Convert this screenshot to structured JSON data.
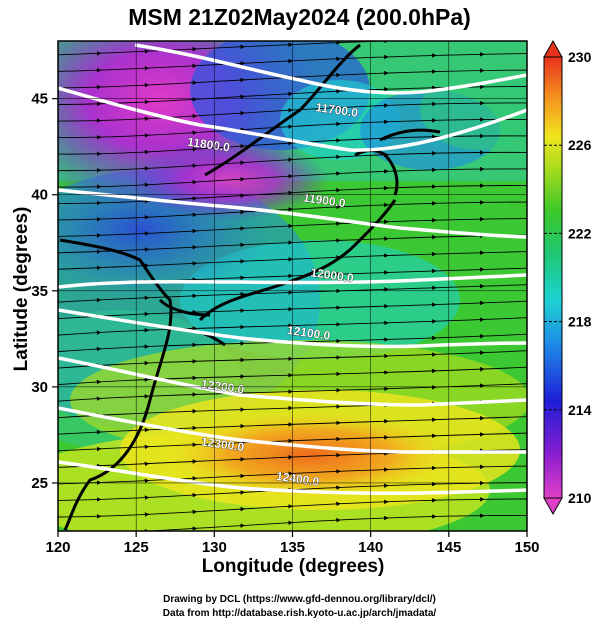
{
  "title": "MSM 21Z02May2024 (200.0hPa)",
  "map_axes": {
    "xlabel": "Longitude (degrees)",
    "ylabel": "Latitude  (degrees)",
    "xlim": [
      120,
      150
    ],
    "ylim": [
      22.5,
      48
    ],
    "x_ticks": [
      "120",
      "125",
      "130",
      "135",
      "140",
      "145",
      "150"
    ],
    "y_ticks": [
      "25",
      "30",
      "35",
      "40",
      "45"
    ]
  },
  "colorbar": {
    "range": [
      210,
      230
    ],
    "tick_labels": [
      "230",
      "226",
      "222",
      "218",
      "214",
      "210"
    ]
  },
  "contour_labels": [
    {
      "text": "11700.0",
      "lon": 137.8,
      "lat": 44.2
    },
    {
      "text": "11800.0",
      "lon": 129.6,
      "lat": 42.4
    },
    {
      "text": "11900.0",
      "lon": 137.0,
      "lat": 39.5
    },
    {
      "text": "12000.0",
      "lon": 137.5,
      "lat": 35.6
    },
    {
      "text": "12100.0",
      "lon": 136.0,
      "lat": 32.6
    },
    {
      "text": "12200.0",
      "lon": 130.5,
      "lat": 29.8
    },
    {
      "text": "12300.0",
      "lon": 130.5,
      "lat": 26.8
    },
    {
      "text": "12400.0",
      "lon": 135.3,
      "lat": 25.0
    }
  ],
  "credits": {
    "line1": "Drawing by DCL (https://www.gfd-dennou.org/library/dcl/)",
    "line2": "Data from http://database.rish.kyoto-u.ac.jp/arch/jmadata/"
  }
}
